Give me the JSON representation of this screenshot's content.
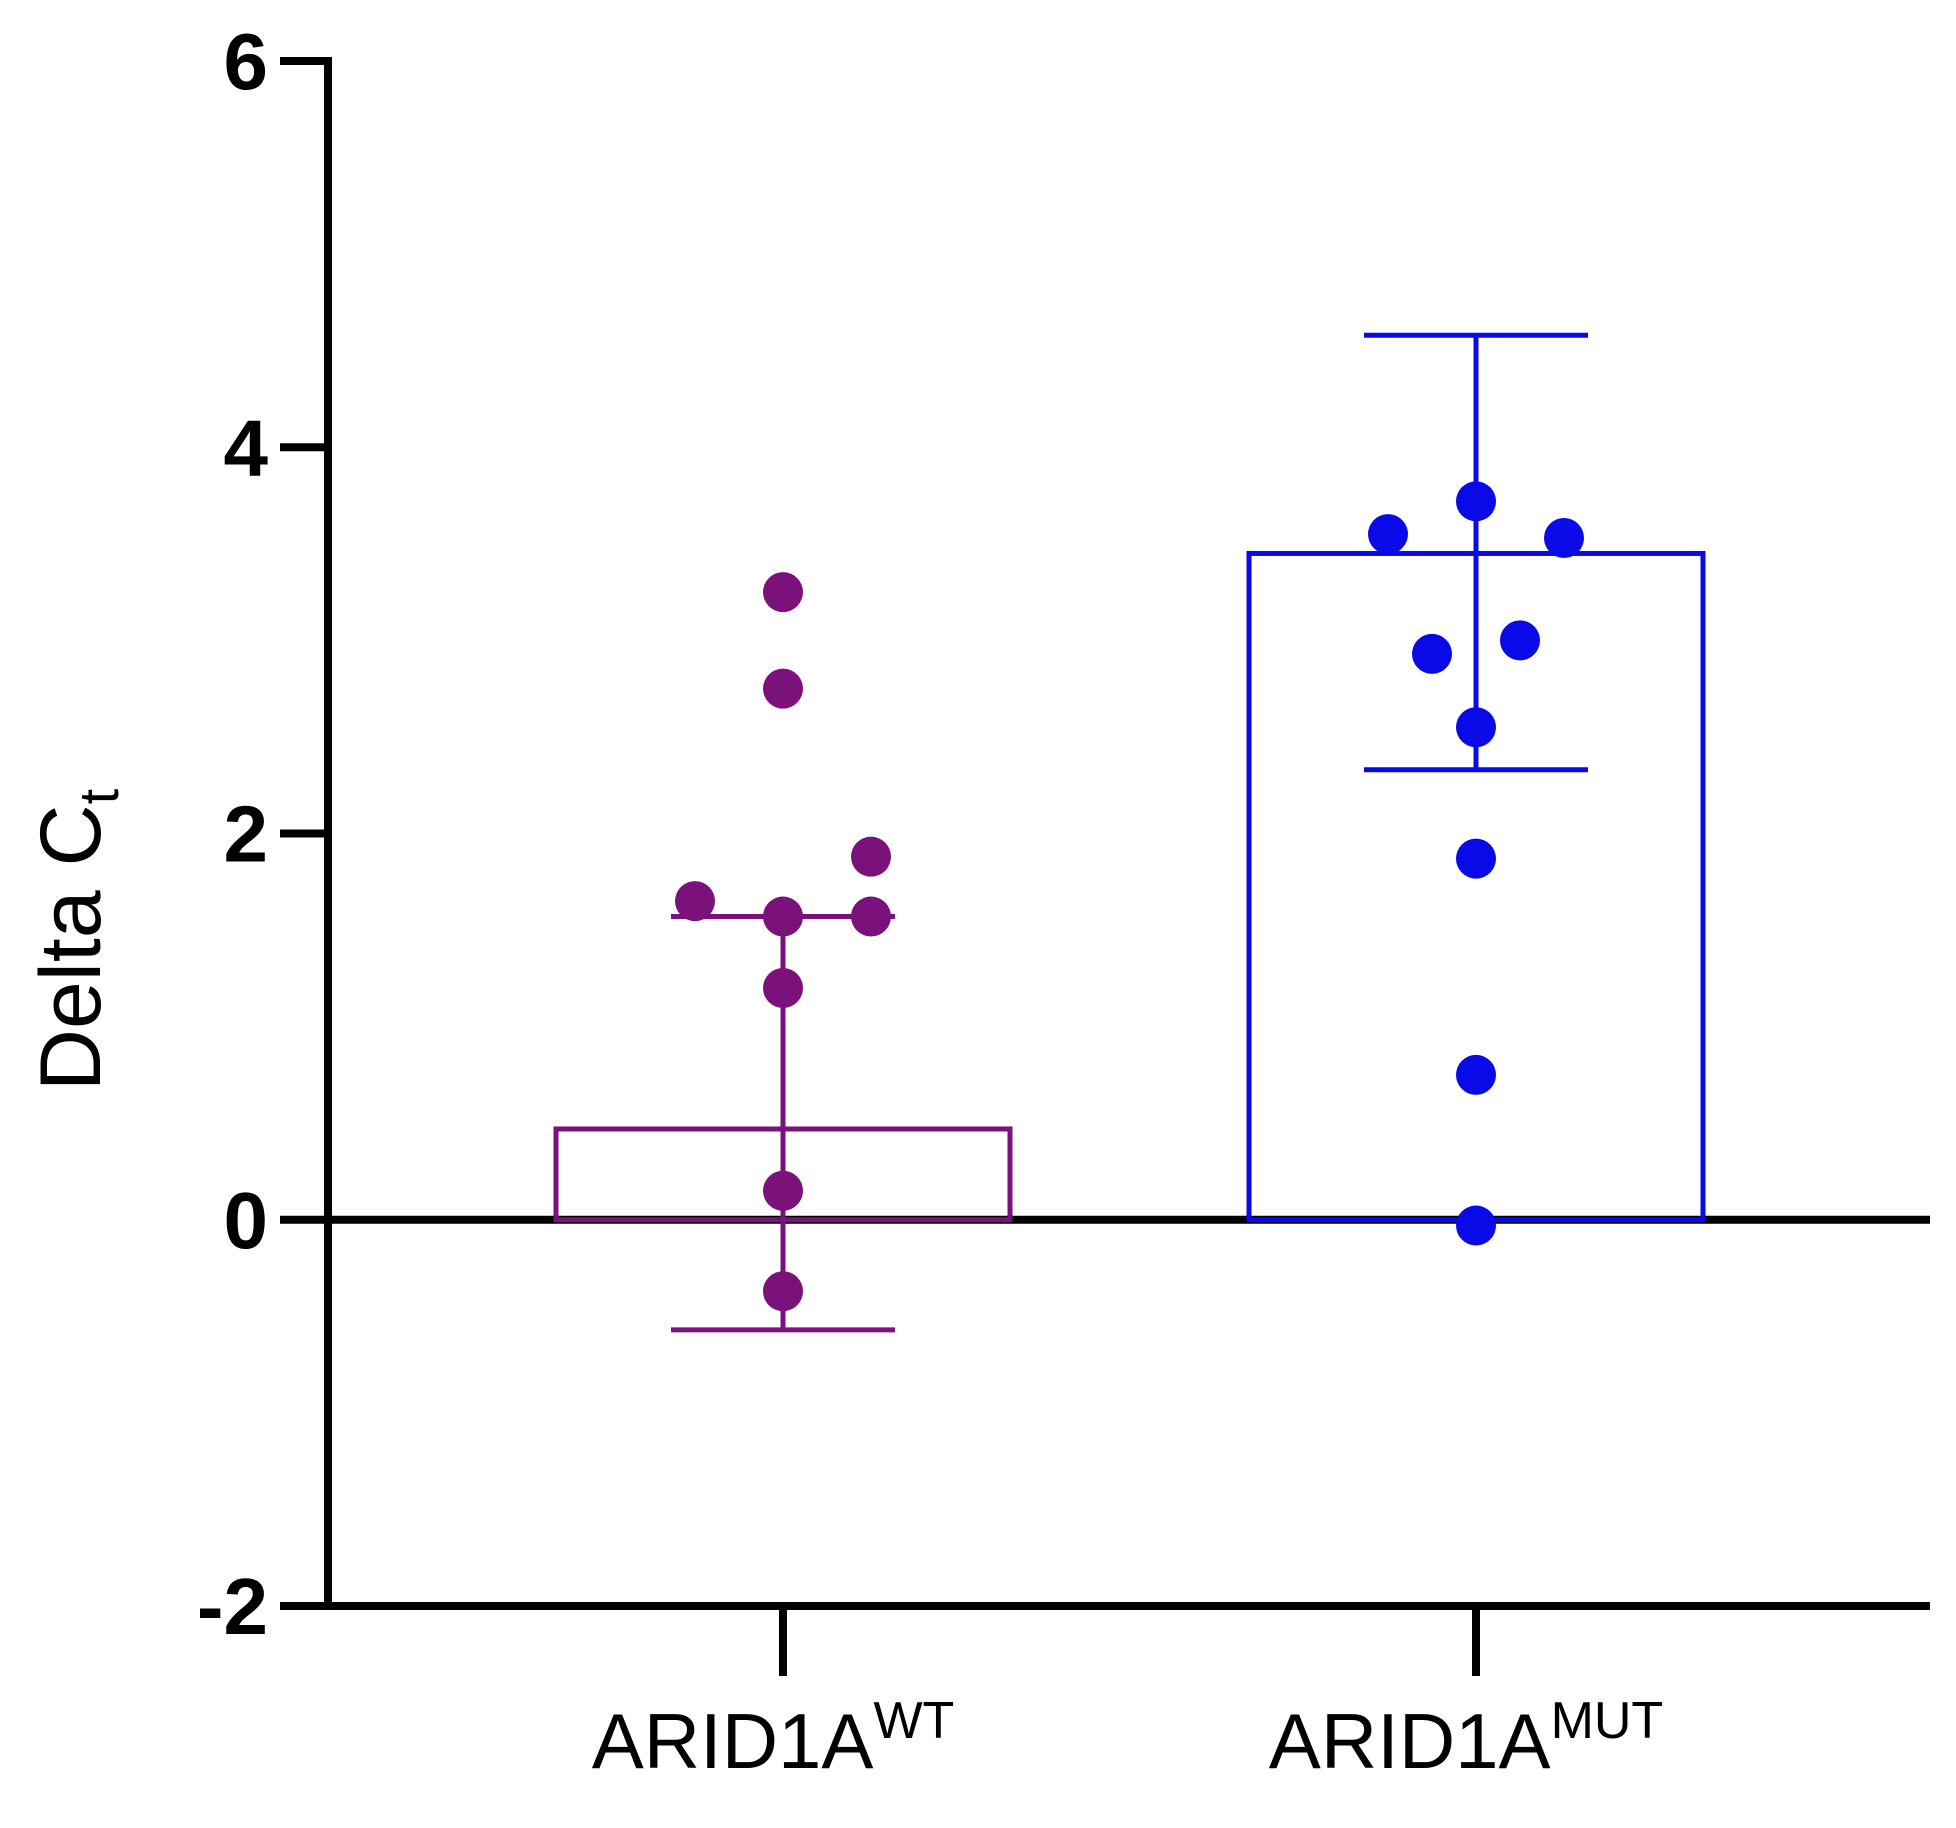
{
  "chart_data": {
    "type": "bar",
    "title": "",
    "ylabel": {
      "main": "Delta C",
      "sub": "t"
    },
    "xlabel": "",
    "ylim": [
      -2,
      6
    ],
    "yticks": [
      -2,
      0,
      2,
      4,
      6
    ],
    "ytick_labels": [
      "-2",
      "0",
      "2",
      "4",
      "6"
    ],
    "categories": [
      {
        "base": "ARID1A",
        "sup": "WT"
      },
      {
        "base": "ARID1A",
        "sup": "MUT"
      }
    ],
    "series": [
      {
        "name": "ARID1A WT",
        "color": "#7b127b",
        "value": 0.47,
        "error_low": -0.57,
        "error_high": 1.57,
        "points": [
          {
            "dx": 0,
            "y": 3.25
          },
          {
            "dx": 0,
            "y": 2.75
          },
          {
            "dx": 1,
            "y": 1.88
          },
          {
            "dx": -1,
            "y": 1.65
          },
          {
            "dx": 0,
            "y": 1.57
          },
          {
            "dx": 1,
            "y": 1.57
          },
          {
            "dx": 0,
            "y": 1.2
          },
          {
            "dx": 0,
            "y": 0.15
          },
          {
            "dx": 0,
            "y": -0.37
          }
        ]
      },
      {
        "name": "ARID1A MUT",
        "color": "#0a0ae8",
        "value": 3.45,
        "error_low": 2.33,
        "error_high": 4.58,
        "points": [
          {
            "dx": 0,
            "y": 3.72
          },
          {
            "dx": -1,
            "y": 3.55
          },
          {
            "dx": 1,
            "y": 3.53
          },
          {
            "dx": 0.5,
            "y": 3.0
          },
          {
            "dx": -0.5,
            "y": 2.93
          },
          {
            "dx": 0,
            "y": 2.55
          },
          {
            "dx": 0,
            "y": 1.87
          },
          {
            "dx": 0,
            "y": 0.75
          },
          {
            "dx": 0,
            "y": -0.03
          }
        ]
      }
    ]
  }
}
